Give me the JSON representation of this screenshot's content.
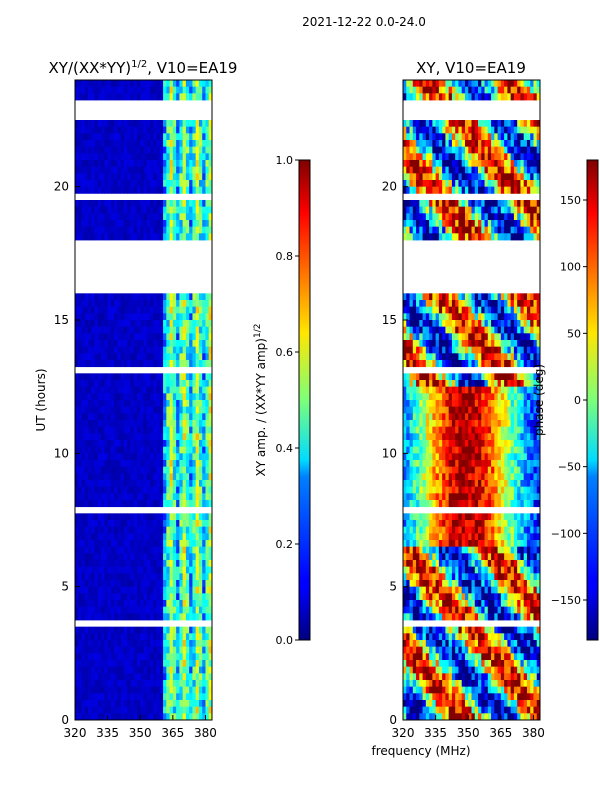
{
  "figure": {
    "suptitle": "2021-12-22 0.0-24.0",
    "shared_xlabel": "frequency (MHz)"
  },
  "chart_data": [
    {
      "type": "heatmap",
      "title_text": "XY/(XX*YY)",
      "title_exponent": "1/2",
      "title_suffix": ", V10=EA19",
      "xlabel": "",
      "ylabel": "UT (hours)",
      "xlim": [
        320,
        383
      ],
      "ylim": [
        0,
        24
      ],
      "xticks": [
        320,
        335,
        350,
        365,
        380
      ],
      "yticks": [
        0,
        5,
        10,
        15,
        20
      ],
      "colorbar": {
        "label_text": "XY amp. / (XX*YY amp)",
        "label_exponent": "1/2",
        "range": [
          0.0,
          1.0
        ],
        "ticks": [
          "0.0",
          "0.2",
          "0.4",
          "0.6",
          "0.8",
          "1.0"
        ],
        "colormap": "jet"
      },
      "blank_time_ranges_hours": [
        [
          16.0,
          18.0
        ]
      ],
      "active_freq_band_mhz": [
        361,
        382
      ]
    },
    {
      "type": "heatmap",
      "title_text": "XY, V10=EA19",
      "xlabel": "frequency (MHz)",
      "ylabel": "",
      "xlim": [
        320,
        383
      ],
      "ylim": [
        0,
        24
      ],
      "xticks": [
        320,
        335,
        350,
        365,
        380
      ],
      "yticks": [
        0,
        5,
        10,
        15,
        20
      ],
      "colorbar": {
        "label_text": "phase (deg)",
        "range": [
          -180,
          180
        ],
        "ticks": [
          "−150",
          "−100",
          "−50",
          "0",
          "50",
          "100",
          "150"
        ],
        "colormap": "jet"
      },
      "blank_time_ranges_hours": [
        [
          16.0,
          18.0
        ]
      ]
    }
  ]
}
